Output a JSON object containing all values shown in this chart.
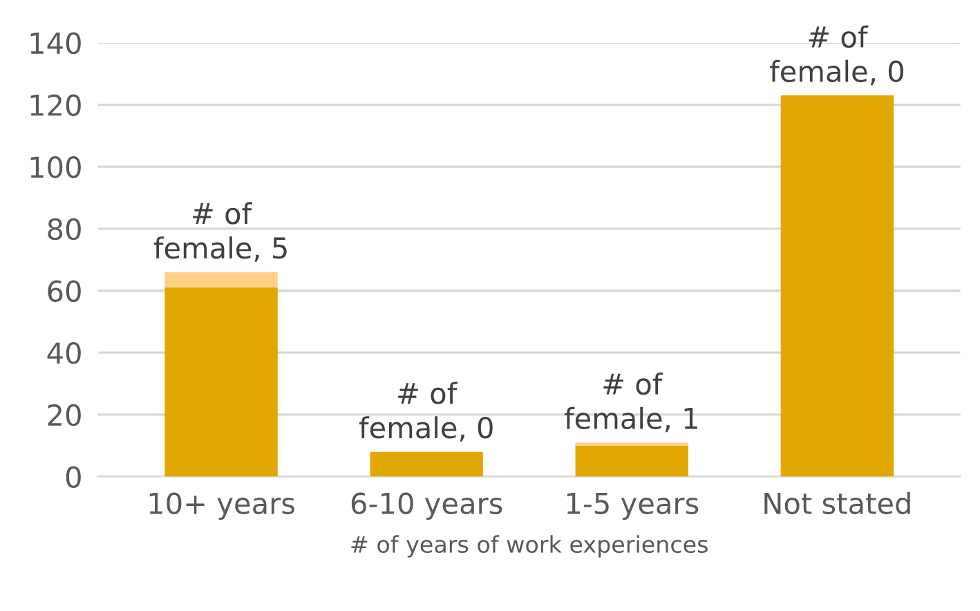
{
  "chart_data": {
    "type": "bar",
    "stacked": true,
    "xlabel": "# of years of work experiences",
    "categories": [
      "10+ years",
      "6-10 years",
      "1-5 years",
      "Not stated"
    ],
    "series": [
      {
        "color": "#e0a800",
        "values": [
          61,
          8,
          10,
          123
        ]
      },
      {
        "color": "#ffd08a",
        "values": [
          5,
          0,
          1,
          0
        ],
        "value_labels": [
          "# of female, 5",
          "# of female, 0",
          "# of female, 1",
          "# of female, 0"
        ]
      }
    ],
    "ylim": [
      0,
      140
    ],
    "yticks": [
      0,
      20,
      40,
      60,
      80,
      100,
      120,
      140
    ],
    "grid": "y",
    "legend": false
  }
}
